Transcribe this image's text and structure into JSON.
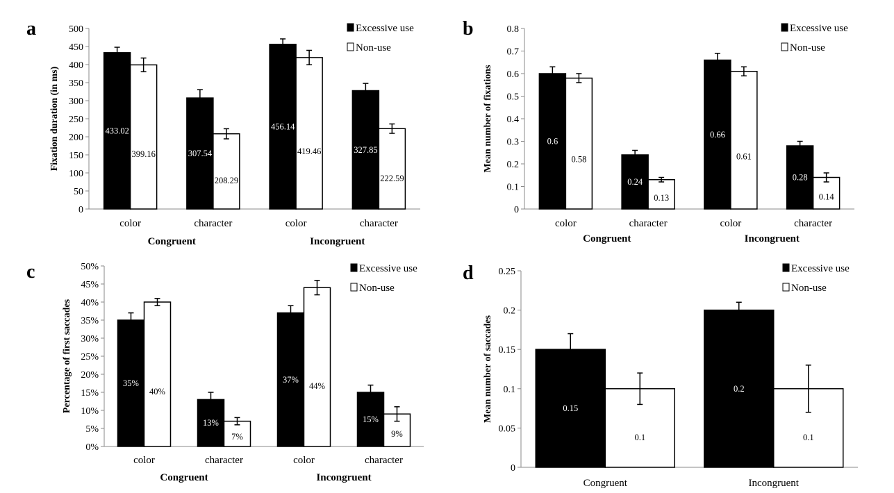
{
  "chart_data": [
    {
      "panel": "a",
      "type": "bar",
      "ylabel": "Fixation duration (in ms)",
      "ylim": [
        0,
        500
      ],
      "yticks": [
        "0",
        "50",
        "100",
        "150",
        "200",
        "250",
        "300",
        "350",
        "400",
        "450",
        "500"
      ],
      "categories": [
        "color",
        "character",
        "color",
        "character"
      ],
      "groups": [
        "Congruent",
        "Incongruent"
      ],
      "legend_position": "top-right",
      "series": [
        {
          "name": "Excessive use",
          "color": "#000000",
          "values": [
            433.02,
            307.54,
            456.14,
            327.85
          ],
          "errors": [
            15,
            23,
            15,
            20
          ],
          "labels": [
            "433.02",
            "307.54",
            "456.14",
            "327.85"
          ]
        },
        {
          "name": "Non-use",
          "color": "#ffffff",
          "values": [
            399.16,
            208.29,
            419.46,
            222.59
          ],
          "errors": [
            19,
            14,
            20,
            13
          ],
          "labels": [
            "399.16",
            "208.29",
            "419.46",
            "222.59"
          ]
        }
      ]
    },
    {
      "panel": "b",
      "type": "bar",
      "ylabel": "Mean number of fixations",
      "ylim": [
        0,
        0.8
      ],
      "yticks": [
        "0",
        "0.1",
        "0.2",
        "0.3",
        "0.4",
        "0.5",
        "0.6",
        "0.7",
        "0.8"
      ],
      "categories": [
        "color",
        "character",
        "color",
        "character"
      ],
      "groups": [
        "Congruent",
        "Incongruent"
      ],
      "legend_position": "top-right",
      "series": [
        {
          "name": "Excessive use",
          "color": "#000000",
          "values": [
            0.6,
            0.24,
            0.66,
            0.28
          ],
          "errors": [
            0.03,
            0.02,
            0.03,
            0.02
          ],
          "labels": [
            "0.6",
            "0.24",
            "0.66",
            "0.28"
          ]
        },
        {
          "name": "Non-use",
          "color": "#ffffff",
          "values": [
            0.58,
            0.13,
            0.61,
            0.14
          ],
          "errors": [
            0.02,
            0.01,
            0.02,
            0.02
          ],
          "labels": [
            "0.58",
            "0.13",
            "0.61",
            "0.14"
          ]
        }
      ]
    },
    {
      "panel": "c",
      "type": "bar",
      "ylabel": "Percentage of first saccades",
      "ylim": [
        0,
        50
      ],
      "yticks": [
        "0%",
        "5%",
        "10%",
        "15%",
        "20%",
        "25%",
        "30%",
        "35%",
        "40%",
        "45%",
        "50%"
      ],
      "categories": [
        "color",
        "character",
        "color",
        "character"
      ],
      "groups": [
        "Congruent",
        "Incongruent"
      ],
      "legend_position": "top-right",
      "series": [
        {
          "name": "Excessive use",
          "color": "#000000",
          "values": [
            35,
            13,
            37,
            15
          ],
          "errors": [
            2,
            2,
            2,
            2
          ],
          "labels": [
            "35%",
            "13%",
            "37%",
            "15%"
          ]
        },
        {
          "name": "Non-use",
          "color": "#ffffff",
          "values": [
            40,
            7,
            44,
            9
          ],
          "errors": [
            1,
            1,
            2,
            2
          ],
          "labels": [
            "40%",
            "7%",
            "44%",
            "9%"
          ]
        }
      ]
    },
    {
      "panel": "d",
      "type": "bar",
      "ylabel": "Mean number of saccades",
      "ylim": [
        0,
        0.25
      ],
      "yticks": [
        "0",
        "0.05",
        "0.1",
        "0.15",
        "0.2",
        "0.25"
      ],
      "categories": [
        "Congruent",
        "Incongruent"
      ],
      "groups": [],
      "legend_position": "top-right",
      "series": [
        {
          "name": "Excessive use",
          "color": "#000000",
          "values": [
            0.15,
            0.2
          ],
          "errors": [
            0.02,
            0.01
          ],
          "labels": [
            "0.15",
            "0.2"
          ]
        },
        {
          "name": "Non-use",
          "color": "#ffffff",
          "values": [
            0.1,
            0.1
          ],
          "errors": [
            0.02,
            0.03
          ],
          "labels": [
            "0.1",
            "0.1"
          ]
        }
      ]
    }
  ]
}
